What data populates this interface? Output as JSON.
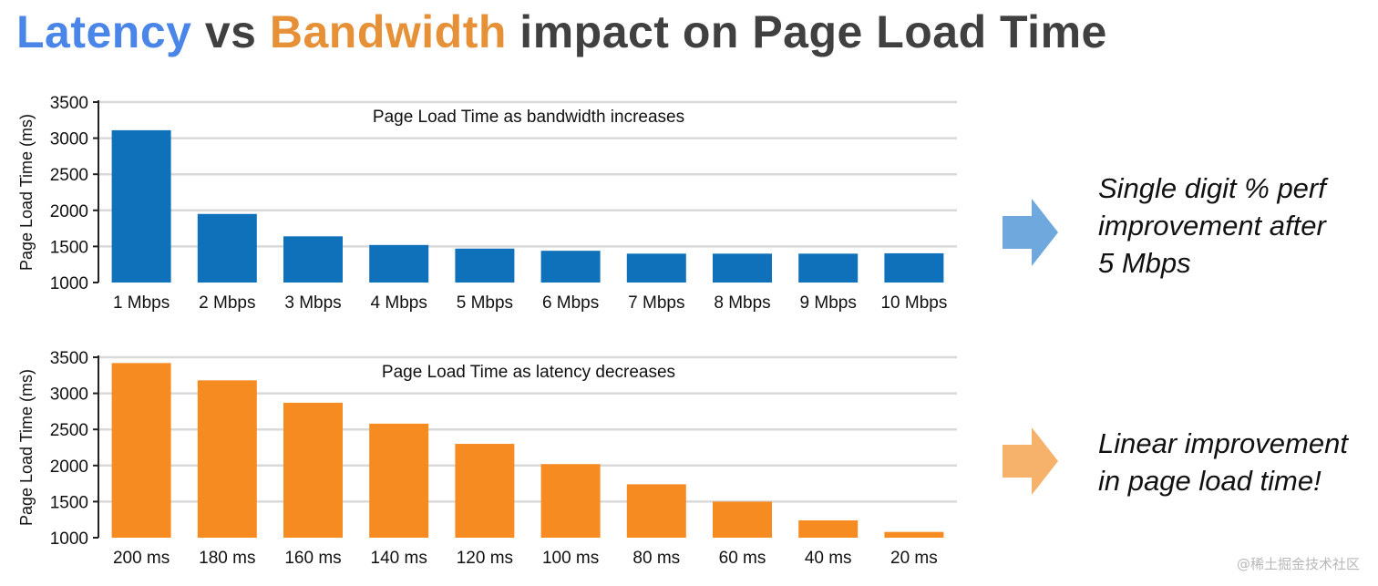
{
  "slide": {
    "title_latency": "Latency",
    "title_vs": " vs ",
    "title_bandwidth": "Bandwidth",
    "title_rest": " impact on Page Load Time"
  },
  "colors": {
    "latency_title": "#4a86e8",
    "bandwidth_title": "#e69138",
    "bandwidth_bars": "#0f71ba",
    "latency_bars": "#f68b22",
    "arrow_blue": "#6fa8dc",
    "arrow_orange": "#f6b26b",
    "grid": "#d9d9d9"
  },
  "notes": {
    "bandwidth": [
      "Single digit % perf",
      "improvement after",
      "5 Mbps"
    ],
    "latency": [
      "Linear improvement",
      "in page load time!"
    ]
  },
  "icons": {
    "bandwidth_arrow": "right-arrow-icon",
    "latency_arrow": "right-arrow-icon"
  },
  "watermark": "@稀土掘金技术社区",
  "chart_data": [
    {
      "type": "bar",
      "title": "Page Load Time as bandwidth increases",
      "xlabel": "",
      "ylabel": "Page Load Time (ms)",
      "categories": [
        "1 Mbps",
        "2 Mbps",
        "3 Mbps",
        "4 Mbps",
        "5 Mbps",
        "6 Mbps",
        "7 Mbps",
        "8 Mbps",
        "9 Mbps",
        "10 Mbps"
      ],
      "values": [
        3110,
        1950,
        1640,
        1520,
        1470,
        1440,
        1400,
        1400,
        1400,
        1405
      ],
      "ylim": [
        1000,
        3500
      ],
      "yticks": [
        1000,
        1500,
        2000,
        2500,
        3000,
        3500
      ],
      "grid": true,
      "legend": "none"
    },
    {
      "type": "bar",
      "title": "Page Load Time as latency decreases",
      "xlabel": "",
      "ylabel": "Page Load Time (ms)",
      "categories": [
        "200 ms",
        "180 ms",
        "160 ms",
        "140 ms",
        "120 ms",
        "100 ms",
        "80 ms",
        "60 ms",
        "40 ms",
        "20 ms"
      ],
      "values": [
        3420,
        3180,
        2870,
        2580,
        2300,
        2020,
        1740,
        1500,
        1240,
        1080
      ],
      "ylim": [
        1000,
        3500
      ],
      "yticks": [
        1000,
        1500,
        2000,
        2500,
        3000,
        3500
      ],
      "grid": true,
      "legend": "none"
    }
  ]
}
